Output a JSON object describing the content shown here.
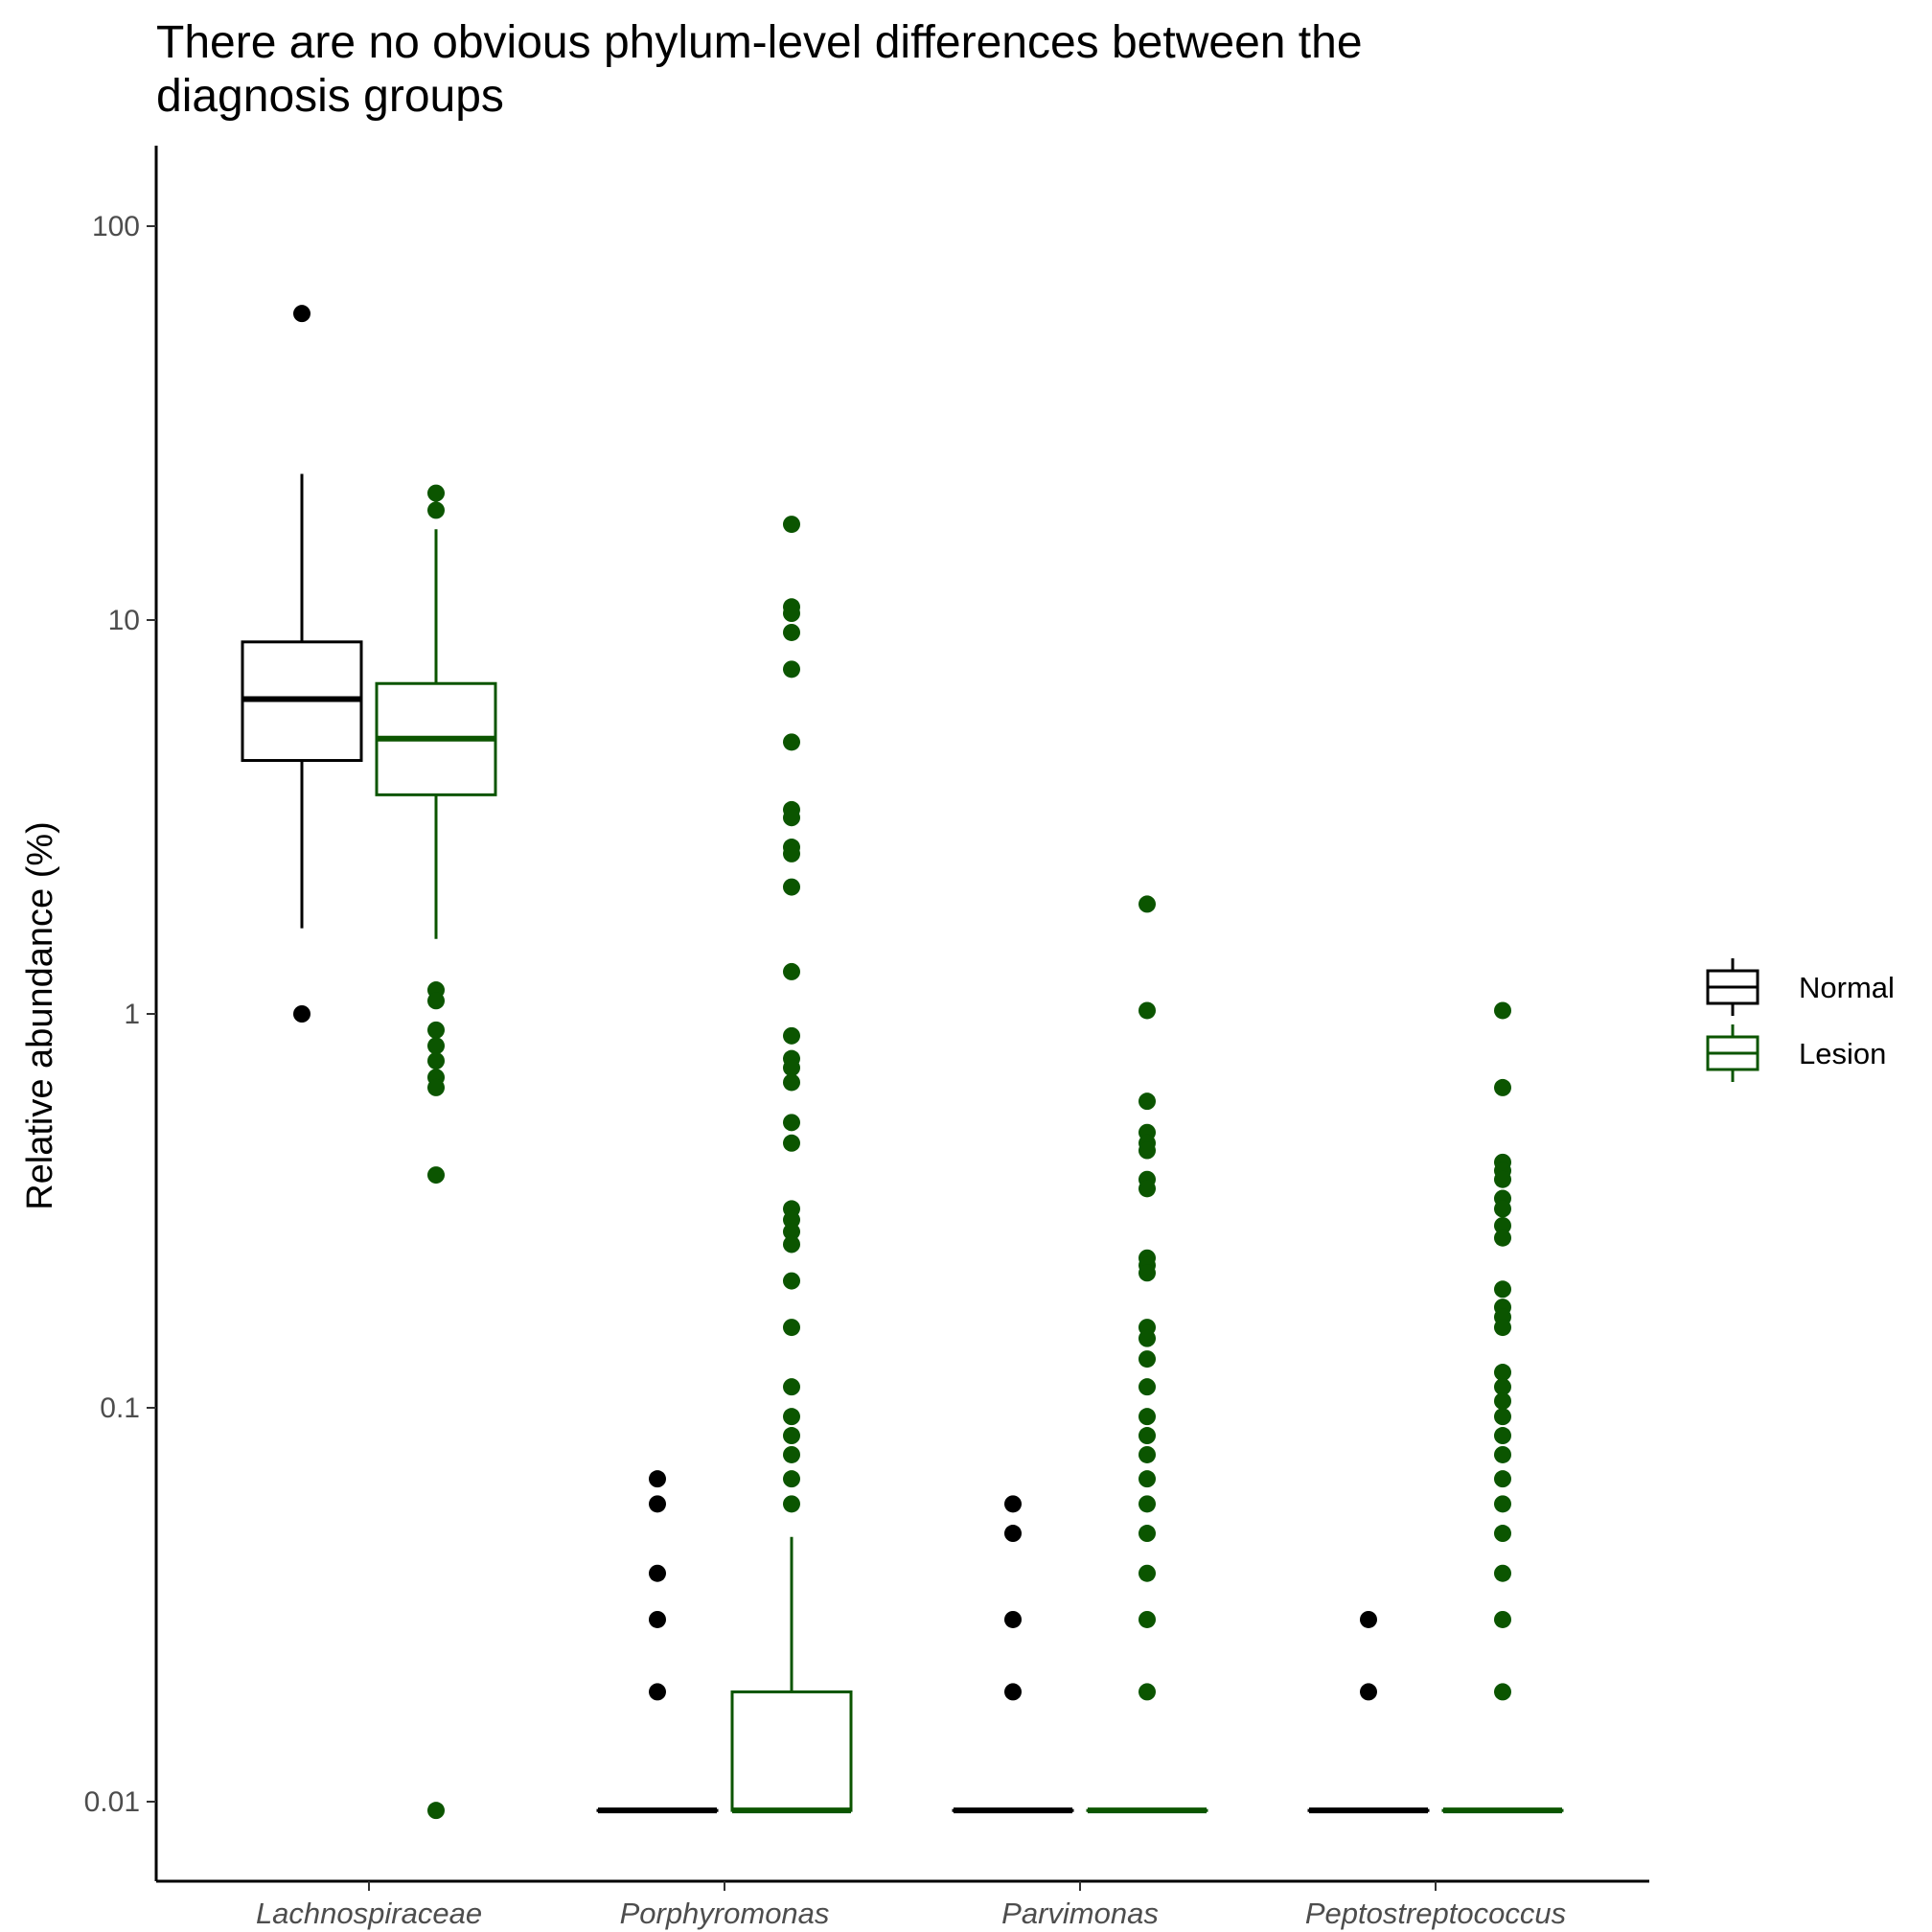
{
  "chart_data": {
    "type": "boxplot",
    "title_lines": [
      "There are no obvious phylum-level differences between the",
      "diagnosis groups"
    ],
    "xlabel": "",
    "ylabel": "Relative abundance (%)",
    "y_scale": "log10",
    "ylim": [
      0.0065,
      160
    ],
    "yticks": [
      {
        "value": 100,
        "label": "100"
      },
      {
        "value": 10,
        "label": "10"
      },
      {
        "value": 1,
        "label": "1"
      },
      {
        "value": 0.1,
        "label": "0.1"
      },
      {
        "value": 0.01,
        "label": "0.01"
      }
    ],
    "categories": [
      "Lachnospiraceae",
      "Porphyromonas",
      "Parvimonas",
      "Peptostreptococcus"
    ],
    "legend": {
      "position": "right",
      "entries": [
        {
          "name": "Normal",
          "color": "#000000"
        },
        {
          "name": "Lesion",
          "color": "#0b5500"
        }
      ]
    },
    "series": [
      {
        "name": "Normal",
        "color": "#000000",
        "boxes": [
          {
            "lower_whisker": 1.65,
            "q1": 4.4,
            "median": 6.3,
            "q3": 8.8,
            "upper_whisker": 23.5,
            "outliers": [
              60,
              1.0
            ]
          },
          {
            "lower_whisker": 0.0095,
            "q1": 0.0095,
            "median": 0.0095,
            "q3": 0.0095,
            "upper_whisker": 0.0095,
            "outliers": [
              0.066,
              0.057,
              0.038,
              0.029,
              0.019
            ]
          },
          {
            "lower_whisker": 0.0095,
            "q1": 0.0095,
            "median": 0.0095,
            "q3": 0.0095,
            "upper_whisker": 0.0095,
            "outliers": [
              0.057,
              0.048,
              0.029,
              0.019
            ]
          },
          {
            "lower_whisker": 0.0095,
            "q1": 0.0095,
            "median": 0.0095,
            "q3": 0.0095,
            "upper_whisker": 0.0095,
            "outliers": [
              0.029,
              0.019
            ]
          }
        ]
      },
      {
        "name": "Lesion",
        "color": "#0b5500",
        "boxes": [
          {
            "lower_whisker": 1.55,
            "q1": 3.6,
            "median": 5.0,
            "q3": 6.9,
            "upper_whisker": 17.0,
            "outliers": [
              21,
              19,
              1.15,
              1.08,
              0.91,
              0.83,
              0.76,
              0.69,
              0.65,
              0.39,
              0.0095
            ]
          },
          {
            "lower_whisker": 0.0095,
            "q1": 0.0095,
            "median": 0.0095,
            "q3": 0.019,
            "upper_whisker": 0.047,
            "outliers": [
              17.5,
              10.8,
              10.4,
              9.3,
              7.5,
              4.9,
              3.3,
              3.15,
              2.65,
              2.55,
              2.1,
              1.28,
              0.88,
              0.77,
              0.73,
              0.67,
              0.53,
              0.47,
              0.32,
              0.3,
              0.28,
              0.26,
              0.21,
              0.16,
              0.113,
              0.095,
              0.085,
              0.076,
              0.066,
              0.057
            ]
          },
          {
            "lower_whisker": 0.0095,
            "q1": 0.0095,
            "median": 0.0095,
            "q3": 0.0095,
            "upper_whisker": 0.0095,
            "outliers": [
              1.9,
              1.02,
              0.6,
              0.5,
              0.47,
              0.45,
              0.38,
              0.36,
              0.24,
              0.23,
              0.22,
              0.16,
              0.15,
              0.133,
              0.113,
              0.095,
              0.085,
              0.076,
              0.066,
              0.057,
              0.048,
              0.038,
              0.029,
              0.019
            ]
          },
          {
            "lower_whisker": 0.0095,
            "q1": 0.0095,
            "median": 0.0095,
            "q3": 0.0095,
            "upper_whisker": 0.0095,
            "outliers": [
              1.02,
              0.65,
              0.42,
              0.4,
              0.38,
              0.34,
              0.32,
              0.29,
              0.27,
              0.2,
              0.18,
              0.17,
              0.16,
              0.123,
              0.113,
              0.104,
              0.095,
              0.085,
              0.076,
              0.066,
              0.057,
              0.048,
              0.038,
              0.029,
              0.019
            ]
          }
        ]
      }
    ]
  }
}
